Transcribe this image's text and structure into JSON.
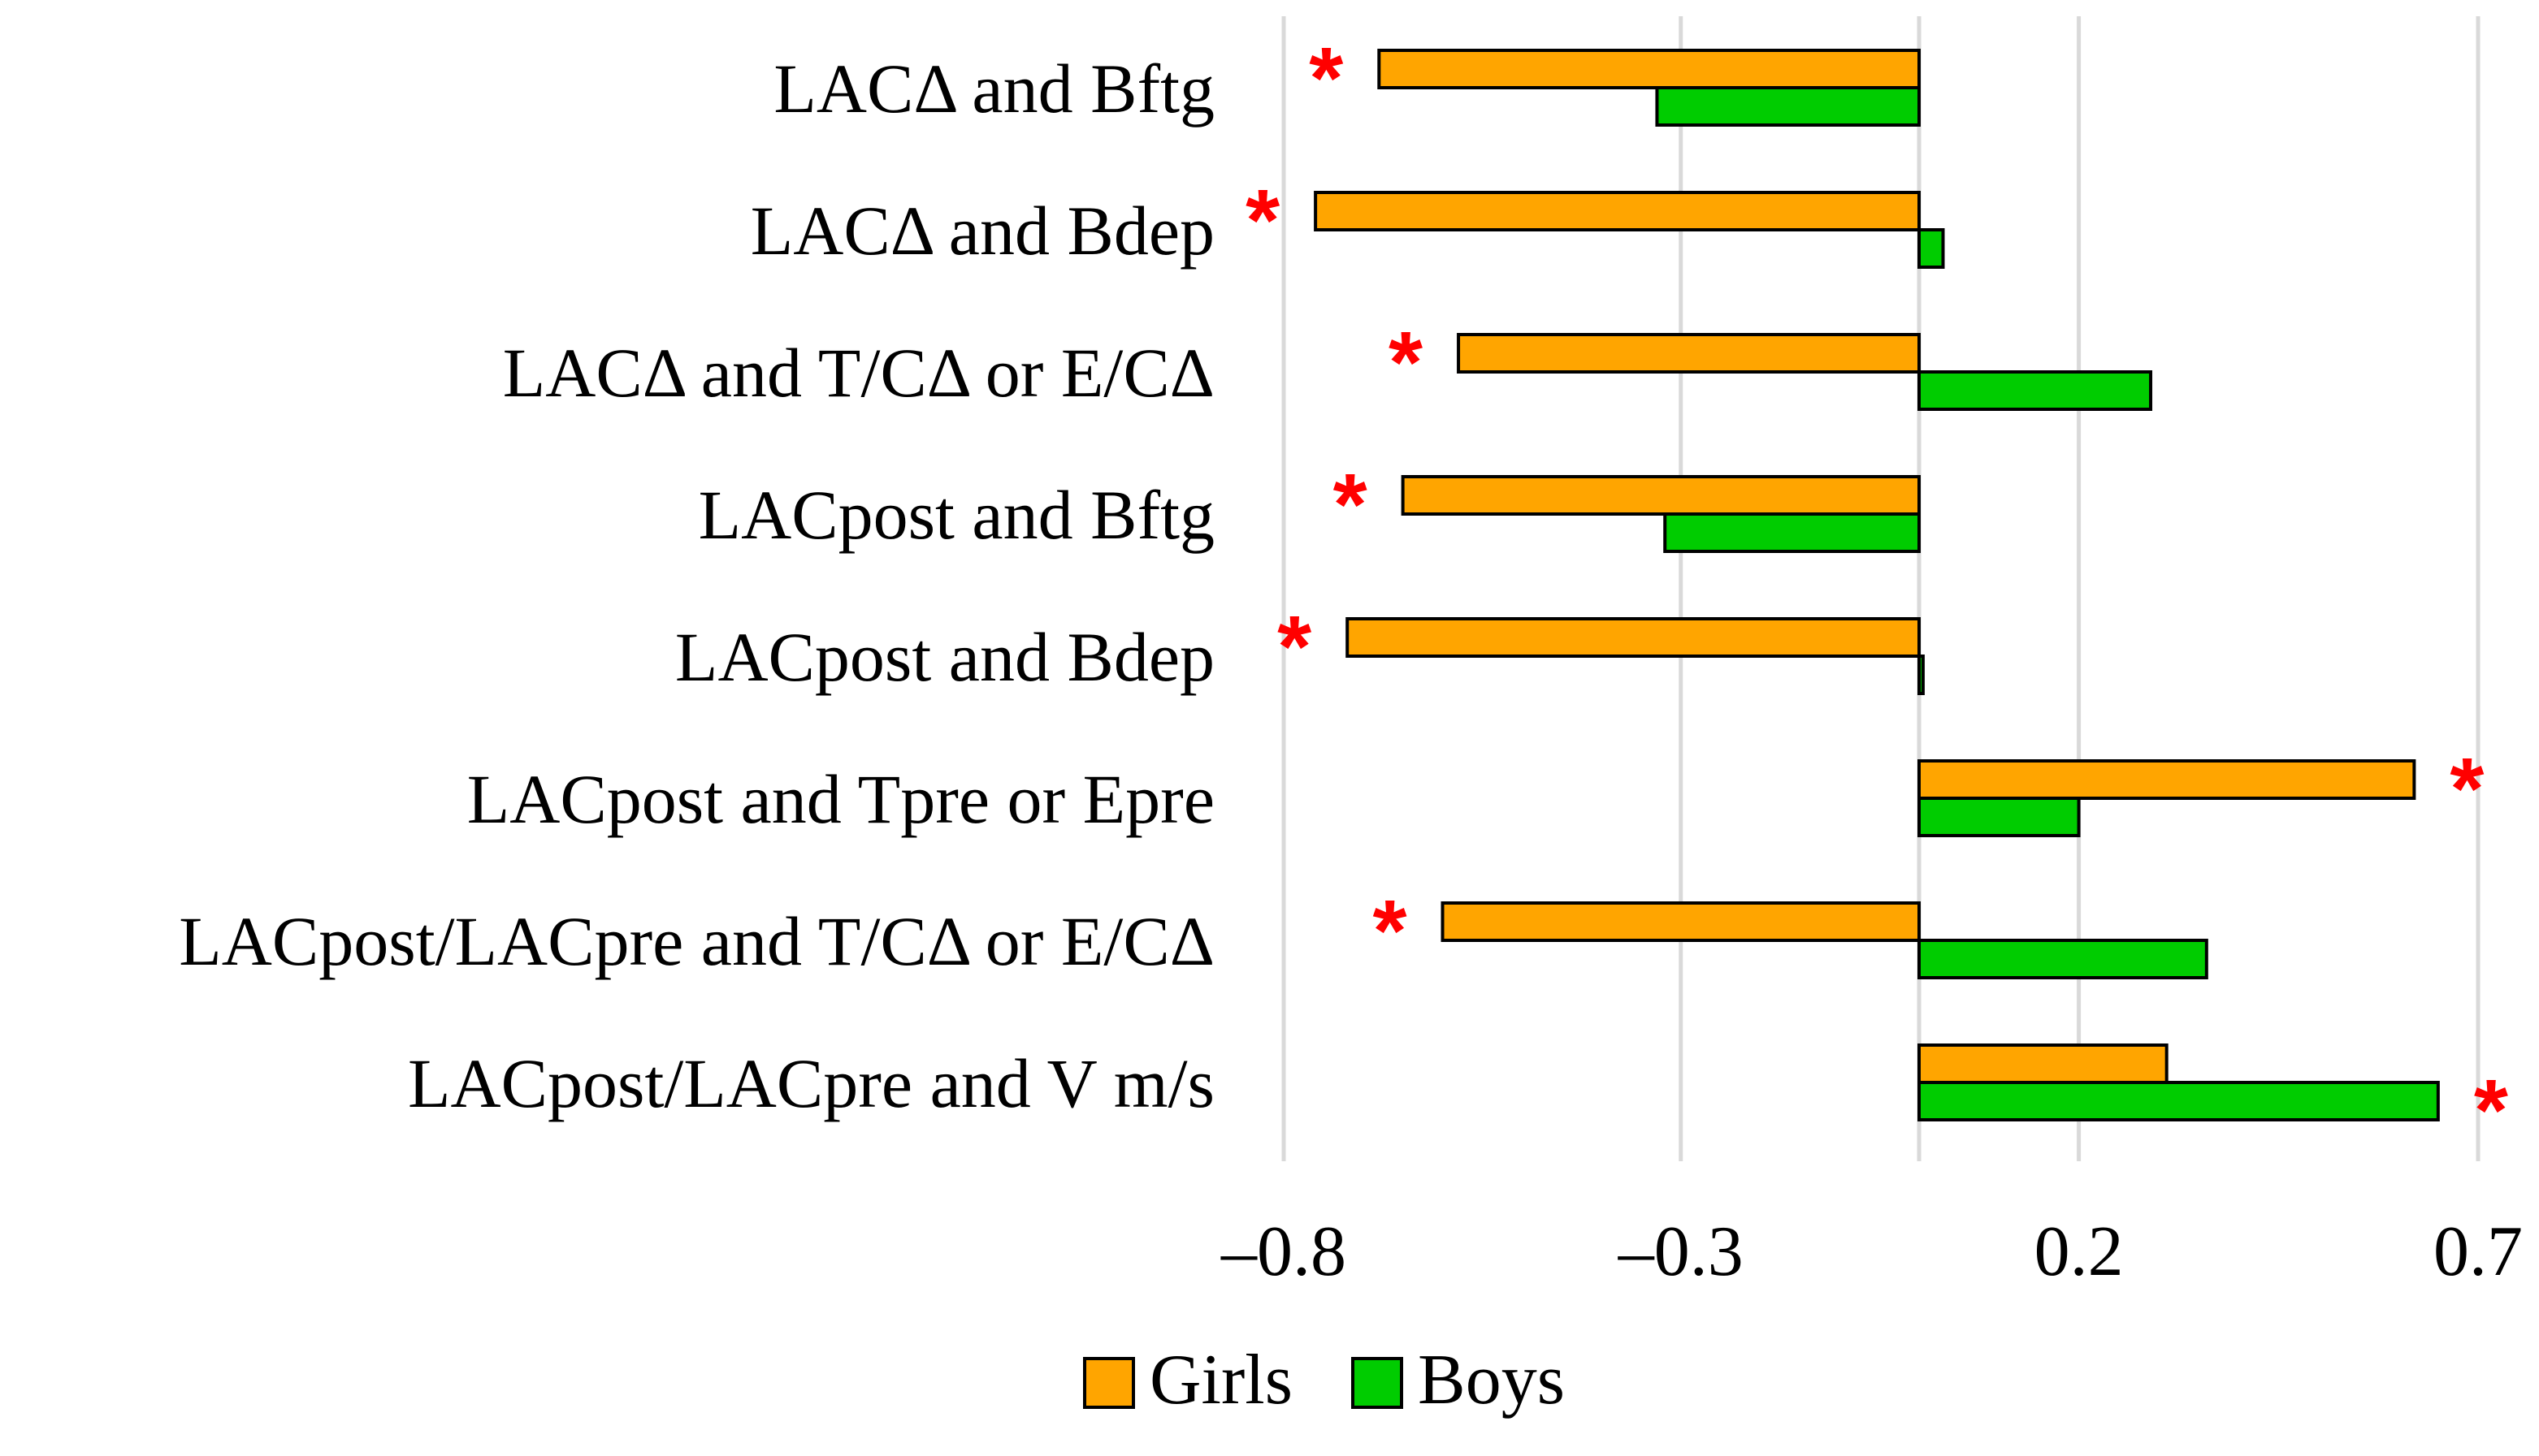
{
  "chart_data": {
    "type": "bar",
    "orientation": "horizontal",
    "title": "",
    "xlabel": "",
    "ylabel": "",
    "categories": [
      "LACΔ and Bftg",
      "LACΔ and Bdep",
      "LACΔ and T/CΔ or E/CΔ",
      "LACpost and Bftg",
      "LACpost and Bdep",
      "LACpost and Tpre or Epre",
      "LACpost/LACpre  and T/CΔ or E/CΔ",
      "LACpost/LACpre and V m/s"
    ],
    "series": [
      {
        "name": "Girls",
        "color": "#ffa500",
        "values": [
          -0.68,
          -0.76,
          -0.58,
          -0.65,
          -0.72,
          0.62,
          -0.6,
          0.31
        ],
        "significant": [
          true,
          true,
          true,
          true,
          true,
          true,
          true,
          false
        ]
      },
      {
        "name": "Boys",
        "color": "#00cc00",
        "values": [
          -0.33,
          0.03,
          0.29,
          -0.32,
          0.005,
          0.2,
          0.36,
          0.65
        ],
        "significant": [
          false,
          false,
          false,
          false,
          false,
          false,
          false,
          true
        ]
      }
    ],
    "xlim": [
      -0.8,
      0.7
    ],
    "xticks": [
      -0.8,
      -0.3,
      0.2,
      0.7
    ],
    "xtick_labels": [
      "–0.8",
      "–0.3",
      "0.2",
      "0.7"
    ],
    "grid": true,
    "legend": "bottom-center",
    "significance_marker": "*",
    "significance_color": "#ff0000"
  }
}
